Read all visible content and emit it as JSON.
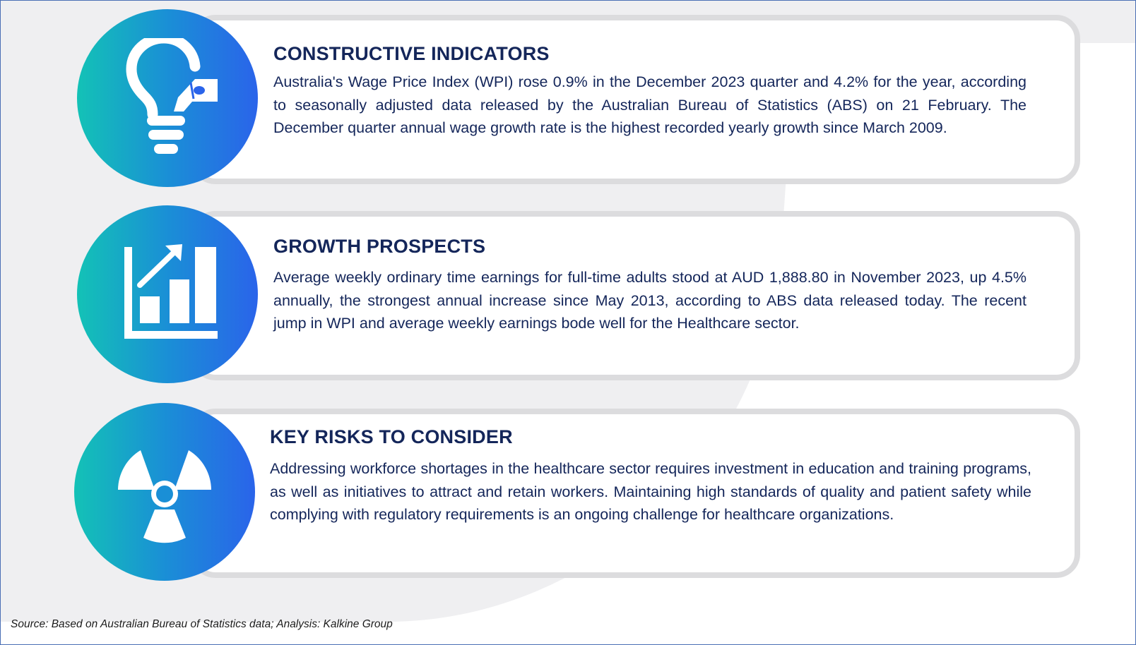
{
  "cards": [
    {
      "icon": "lightbulb-tag-icon",
      "title": "CONSTRUCTIVE INDICATORS",
      "text": "Australia's Wage Price Index (WPI) rose 0.9% in the December 2023 quarter and 4.2% for the year, according to seasonally adjusted data released by the Australian Bureau of Statistics (ABS) on 21 February. The December quarter annual wage growth rate is the highest recorded yearly growth since March 2009."
    },
    {
      "icon": "growth-chart-icon",
      "title": "GROWTH PROSPECTS",
      "text": "Average weekly ordinary time earnings for full-time adults stood at AUD 1,888.80 in November 2023, up 4.5% annually, the strongest annual increase since May 2013, according to ABS data released today. The recent jump in WPI and average weekly earnings bode well for the Healthcare sector."
    },
    {
      "icon": "radiation-hazard-icon",
      "title": "KEY RISKS TO CONSIDER",
      "text": "Addressing workforce shortages in the healthcare sector requires investment in education and training programs, as well as initiatives to attract and retain workers. Maintaining high standards of quality and patient safety while complying with regulatory requirements is an ongoing challenge for healthcare organizations."
    }
  ],
  "source": "Source: Based on Australian Bureau of Statistics data; Analysis: Kalkine Group",
  "colors": {
    "title": "#14265a",
    "gradient_start": "#13c2b6",
    "gradient_end": "#2a64ea",
    "card_border": "#dcdcde",
    "frame_border": "#4a6fb5"
  }
}
